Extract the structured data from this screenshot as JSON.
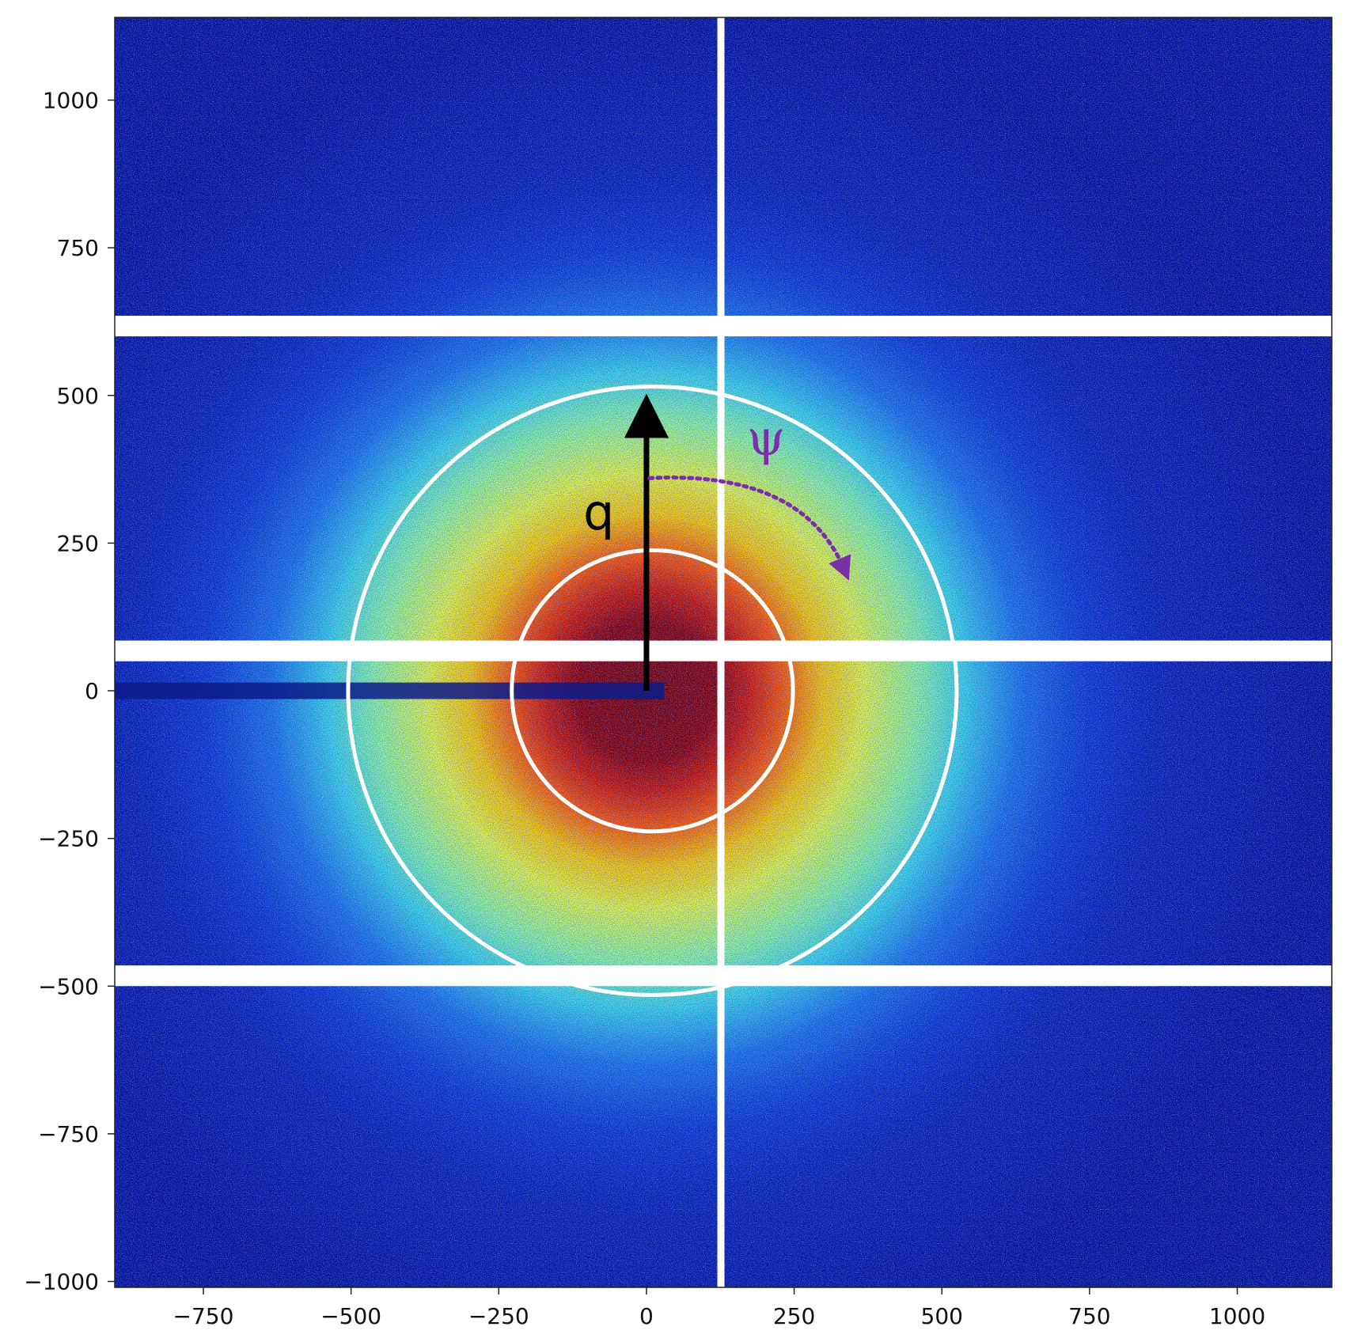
{
  "chart_data": {
    "type": "heatmap",
    "title": "",
    "xlabel": "",
    "ylabel": "",
    "xlim": [
      -900,
      1160
    ],
    "ylim": [
      -1010,
      1140
    ],
    "grid": false,
    "legend": "none",
    "colormap": "jet",
    "x_ticks": [
      -750,
      -500,
      -250,
      0,
      250,
      500,
      750,
      1000
    ],
    "y_ticks": [
      -1000,
      -750,
      -500,
      -250,
      0,
      250,
      500,
      750,
      1000
    ],
    "x_tick_labels": [
      "−750",
      "−500",
      "−250",
      "0",
      "250",
      "500",
      "750",
      "1000"
    ],
    "y_tick_labels": [
      "−1000",
      "−750",
      "−500",
      "−250",
      "0",
      "250",
      "500",
      "750",
      "1000"
    ],
    "beam_center": [
      0,
      0
    ],
    "detector_gaps": {
      "vertical_x": [
        [
          120,
          132
        ]
      ],
      "horizontal_y": [
        [
          600,
          635
        ],
        [
          50,
          85
        ],
        [
          -500,
          -465
        ]
      ]
    },
    "beamstop": {
      "x_start": -900,
      "x_end": 30,
      "y_center": 0,
      "half_height": 14
    },
    "rings": [
      {
        "name": "inner",
        "center": [
          10,
          0
        ],
        "radius": 238
      },
      {
        "name": "outer",
        "center": [
          10,
          0
        ],
        "radius": 515
      }
    ],
    "annotations": [
      {
        "text": "q",
        "type": "arrow",
        "from": [
          0,
          0
        ],
        "to": [
          0,
          495
        ],
        "color": "#000000"
      },
      {
        "text": "ψ",
        "type": "curved-dotted-arrow",
        "from": [
          5,
          360
        ],
        "to": [
          335,
          205
        ],
        "color": "#7a2fa8"
      }
    ]
  },
  "colors": {
    "arrow_q": "#000000",
    "arrow_psi": "#7a2fa8",
    "rings": "#ffffff",
    "gaps": "#ffffff"
  },
  "annotation_labels": {
    "q": "q",
    "psi": "ψ"
  }
}
